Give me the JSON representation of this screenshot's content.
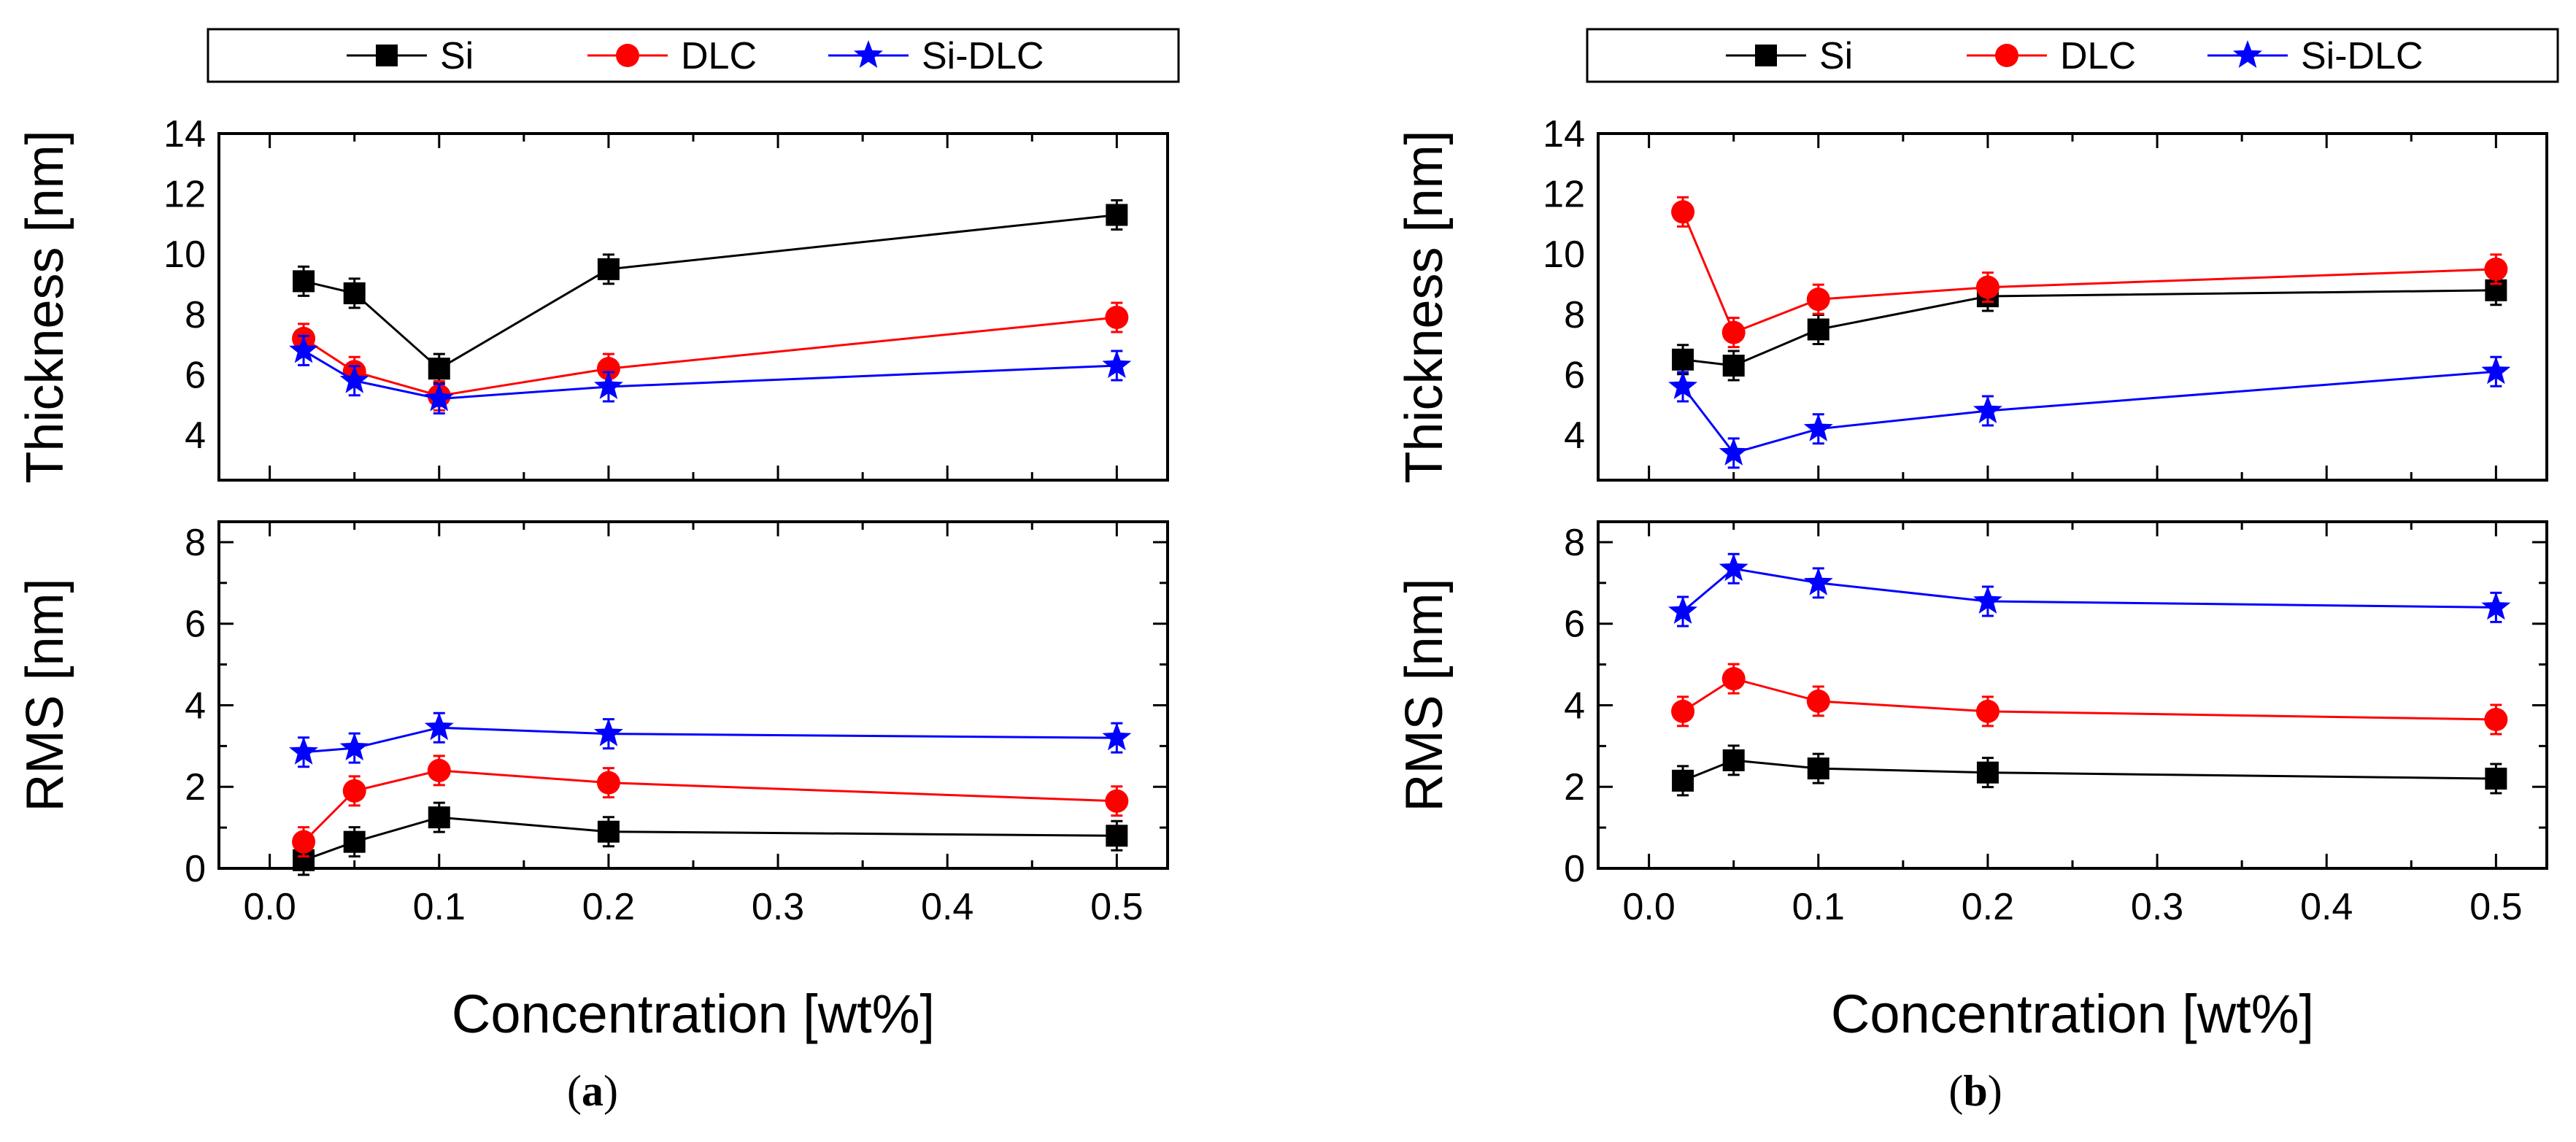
{
  "colors": {
    "Si": "#000000",
    "DLC": "#ff0000",
    "Si-DLC": "#0000ff",
    "axis": "#000000",
    "background": "#ffffff"
  },
  "x_axis": {
    "label": "Concentration [wt%]",
    "ticks": [
      0.0,
      0.1,
      0.2,
      0.3,
      0.4,
      0.5
    ],
    "tick_labels": [
      "0.0",
      "0.1",
      "0.2",
      "0.3",
      "0.4",
      "0.5"
    ],
    "xlim": [
      -0.03,
      0.53
    ]
  },
  "panels": [
    {
      "id": "a",
      "caption_open": "(",
      "caption_letter": "a",
      "caption_close": ")",
      "legend": [
        {
          "name": "Si",
          "marker": "square"
        },
        {
          "name": "DLC",
          "marker": "circle"
        },
        {
          "name": "Si-DLC",
          "marker": "star"
        }
      ]
    },
    {
      "id": "b",
      "caption_open": "(",
      "caption_letter": "b",
      "caption_close": ")",
      "legend": [
        {
          "name": "Si",
          "marker": "square"
        },
        {
          "name": "DLC",
          "marker": "circle"
        },
        {
          "name": "Si-DLC",
          "marker": "star"
        }
      ]
    }
  ],
  "chart_data": [
    {
      "id": "a-thickness",
      "panel": "a",
      "type": "line",
      "title": "",
      "xlabel": "Concentration [wt%]",
      "ylabel": "Thickness [nm]",
      "x": [
        0.02,
        0.05,
        0.1,
        0.2,
        0.5
      ],
      "ylim": [
        2.5,
        14
      ],
      "yticks": [
        4,
        6,
        8,
        10,
        12,
        14
      ],
      "ytick_labels": [
        "4",
        "6",
        "8",
        "10",
        "12",
        "14"
      ],
      "series": [
        {
          "name": "Si",
          "marker": "square",
          "values": [
            9.1,
            8.7,
            6.2,
            9.5,
            11.3
          ]
        },
        {
          "name": "DLC",
          "marker": "circle",
          "values": [
            7.2,
            6.1,
            5.3,
            6.2,
            7.9
          ]
        },
        {
          "name": "Si-DLC",
          "marker": "star",
          "values": [
            6.8,
            5.8,
            5.2,
            5.6,
            6.3
          ]
        }
      ]
    },
    {
      "id": "a-rms",
      "panel": "a",
      "type": "line",
      "title": "",
      "xlabel": "Concentration [wt%]",
      "ylabel": "RMS [nm]",
      "x": [
        0.02,
        0.05,
        0.1,
        0.2,
        0.5
      ],
      "ylim": [
        0,
        8.5
      ],
      "yticks": [
        0,
        2,
        4,
        6,
        8
      ],
      "ytick_labels": [
        "0",
        "2",
        "4",
        "6",
        "8"
      ],
      "series": [
        {
          "name": "Si",
          "marker": "square",
          "values": [
            0.2,
            0.65,
            1.25,
            0.9,
            0.8
          ]
        },
        {
          "name": "DLC",
          "marker": "circle",
          "values": [
            0.65,
            1.9,
            2.4,
            2.1,
            1.65
          ]
        },
        {
          "name": "Si-DLC",
          "marker": "star",
          "values": [
            2.85,
            2.95,
            3.45,
            3.3,
            3.2
          ]
        }
      ]
    },
    {
      "id": "b-thickness",
      "panel": "b",
      "type": "line",
      "title": "",
      "xlabel": "Concentration [wt%]",
      "ylabel": "Thickness [nm]",
      "x": [
        0.02,
        0.05,
        0.1,
        0.2,
        0.5
      ],
      "ylim": [
        2.5,
        14
      ],
      "yticks": [
        4,
        6,
        8,
        10,
        12,
        14
      ],
      "ytick_labels": [
        "4",
        "6",
        "8",
        "10",
        "12",
        "14"
      ],
      "series": [
        {
          "name": "Si",
          "marker": "square",
          "values": [
            6.5,
            6.3,
            7.5,
            8.6,
            8.8
          ]
        },
        {
          "name": "DLC",
          "marker": "circle",
          "values": [
            11.4,
            7.4,
            8.5,
            8.9,
            9.5
          ]
        },
        {
          "name": "Si-DLC",
          "marker": "star",
          "values": [
            5.6,
            3.4,
            4.2,
            4.8,
            6.1
          ]
        }
      ]
    },
    {
      "id": "b-rms",
      "panel": "b",
      "type": "line",
      "title": "",
      "xlabel": "Concentration [wt%]",
      "ylabel": "RMS [nm]",
      "x": [
        0.02,
        0.05,
        0.1,
        0.2,
        0.5
      ],
      "ylim": [
        0,
        8.5
      ],
      "yticks": [
        0,
        2,
        4,
        6,
        8
      ],
      "ytick_labels": [
        "0",
        "2",
        "4",
        "6",
        "8"
      ],
      "series": [
        {
          "name": "Si",
          "marker": "square",
          "values": [
            2.15,
            2.65,
            2.45,
            2.35,
            2.2
          ]
        },
        {
          "name": "DLC",
          "marker": "circle",
          "values": [
            3.85,
            4.65,
            4.1,
            3.85,
            3.65
          ]
        },
        {
          "name": "Si-DLC",
          "marker": "star",
          "values": [
            6.3,
            7.35,
            7.0,
            6.55,
            6.4
          ]
        }
      ]
    }
  ]
}
